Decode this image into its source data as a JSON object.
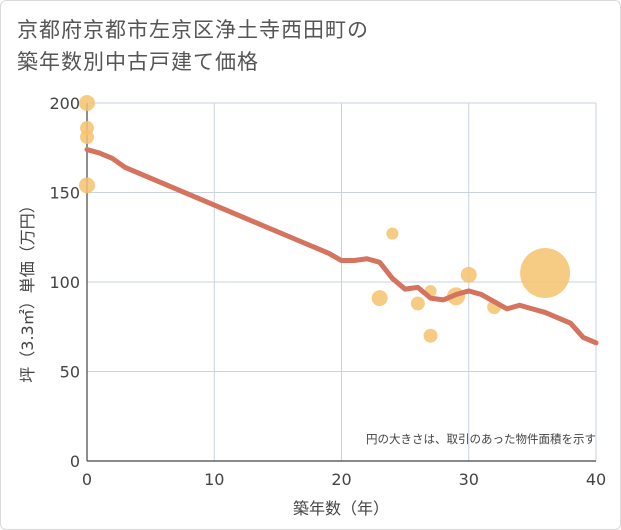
{
  "title_line1": "京都府京都市左京区浄土寺西田町の",
  "title_line2": "築年数別中古戸建て価格",
  "chart_data": {
    "type": "scatter+line",
    "xlabel": "築年数（年）",
    "ylabel": "坪（3.3㎡）単価（万円）",
    "xlim": [
      0,
      40
    ],
    "ylim": [
      0,
      200
    ],
    "x_ticks": [
      0,
      10,
      20,
      30,
      40
    ],
    "y_ticks": [
      0,
      50,
      100,
      150,
      200
    ],
    "grid": true,
    "note": "円の大きさは、取引のあった物件面積を示す",
    "colors": {
      "line": "#d4735e",
      "bubble": "#f5c36f"
    },
    "trend_line": {
      "x": [
        0,
        1,
        2,
        3,
        4,
        5,
        6,
        7,
        8,
        9,
        10,
        11,
        12,
        13,
        14,
        15,
        16,
        17,
        18,
        19,
        20,
        21,
        22,
        23,
        24,
        25,
        26,
        27,
        28,
        29,
        30,
        31,
        32,
        33,
        34,
        35,
        36,
        37,
        38,
        39,
        40
      ],
      "y": [
        174,
        172,
        169,
        164,
        161,
        158,
        155,
        152,
        149,
        146,
        143,
        140,
        137,
        134,
        131,
        128,
        125,
        122,
        119,
        116,
        112,
        112,
        113,
        111,
        102,
        96,
        97,
        91,
        90,
        93,
        95,
        93,
        89,
        85,
        87,
        85,
        83,
        80,
        77,
        69,
        66
      ]
    },
    "bubbles": [
      {
        "x": 0,
        "y": 200,
        "size": 8
      },
      {
        "x": 0,
        "y": 186,
        "size": 7
      },
      {
        "x": 0,
        "y": 181,
        "size": 7
      },
      {
        "x": 0,
        "y": 154,
        "size": 8
      },
      {
        "x": 24,
        "y": 127,
        "size": 6
      },
      {
        "x": 23,
        "y": 91,
        "size": 8
      },
      {
        "x": 26,
        "y": 88,
        "size": 7
      },
      {
        "x": 27,
        "y": 95,
        "size": 6
      },
      {
        "x": 27,
        "y": 70,
        "size": 7
      },
      {
        "x": 29,
        "y": 92,
        "size": 9
      },
      {
        "x": 30,
        "y": 104,
        "size": 8
      },
      {
        "x": 32,
        "y": 86,
        "size": 7
      },
      {
        "x": 36,
        "y": 105,
        "size": 25
      }
    ]
  }
}
